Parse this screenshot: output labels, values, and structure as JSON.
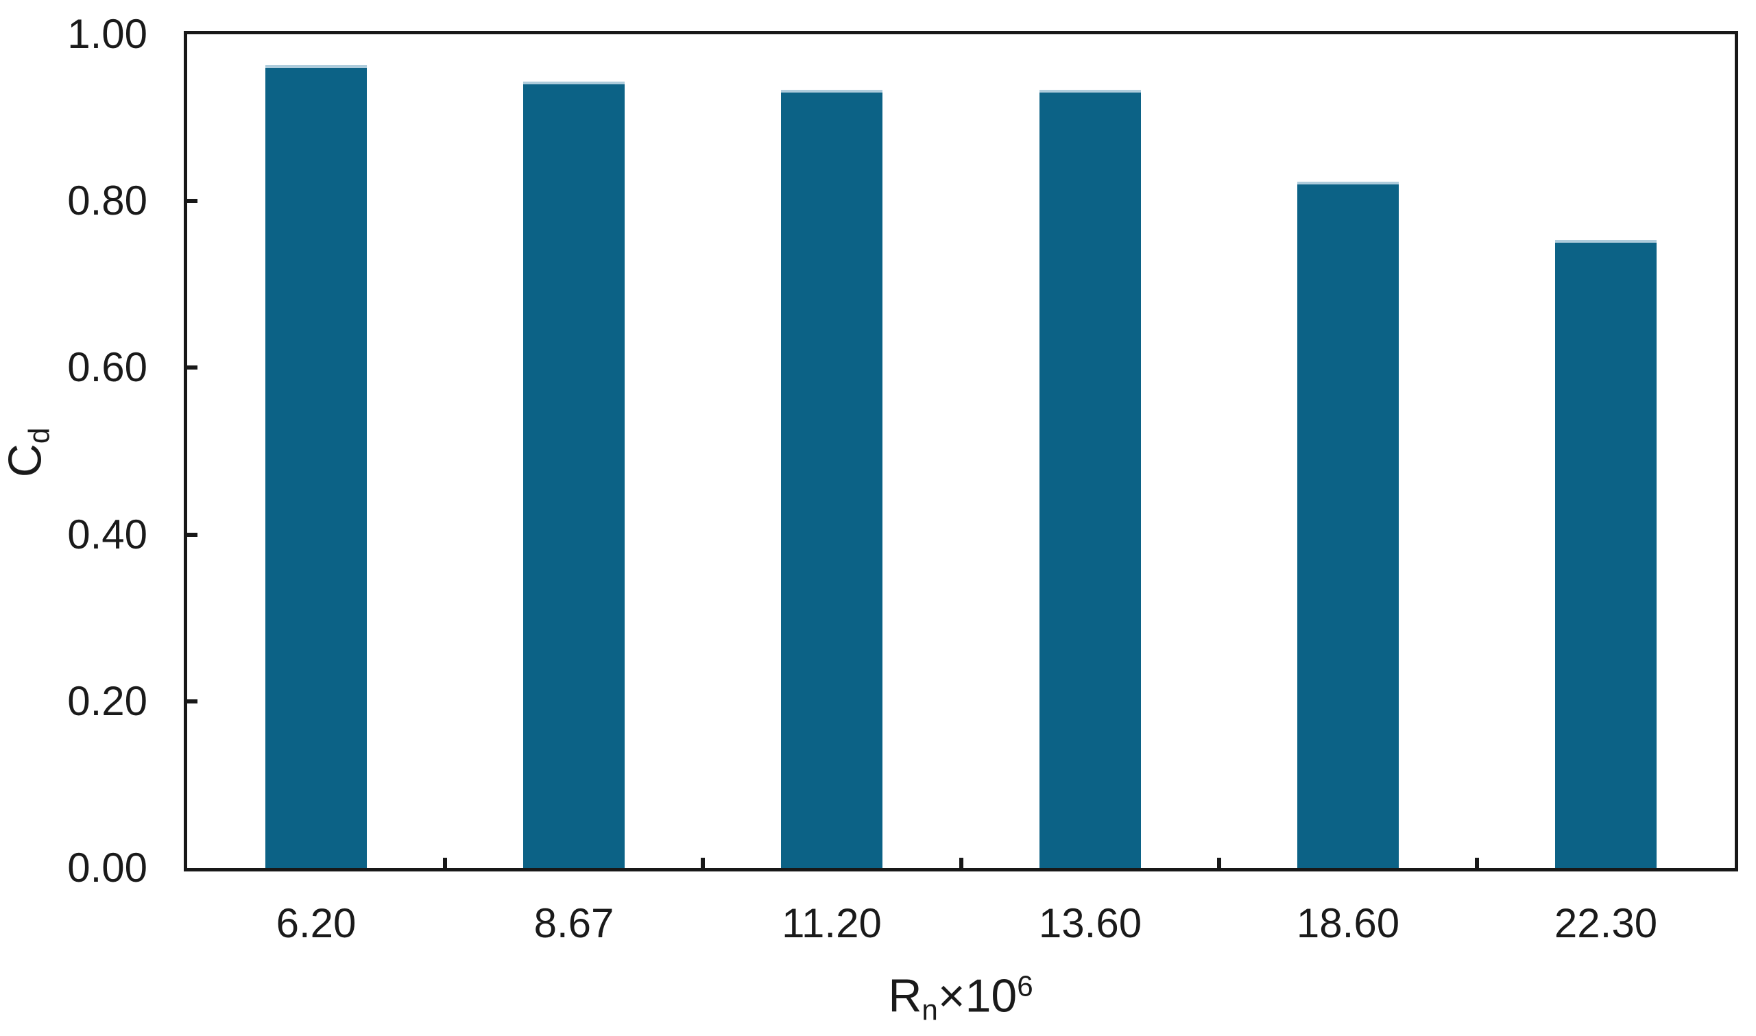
{
  "chart_data": {
    "type": "bar",
    "categories": [
      "6.20",
      "8.67",
      "11.20",
      "13.60",
      "18.60",
      "22.30"
    ],
    "values": [
      0.96,
      0.94,
      0.93,
      0.93,
      0.82,
      0.75
    ],
    "title": "",
    "xlabel": "Rn×10^6",
    "ylabel": "Cd",
    "ylim": [
      0.0,
      1.0
    ],
    "y_ticks": [
      0.0,
      0.2,
      0.4,
      0.6,
      0.8,
      1.0
    ],
    "y_tick_labels": [
      "0.00",
      "0.20",
      "0.40",
      "0.60",
      "0.80",
      "1.00"
    ],
    "grid": false,
    "legend_position": "none",
    "bar_color": "#0c6286",
    "axis_color": "#181818",
    "background_color": "#ffffff"
  },
  "axes": {
    "x_title_parts": {
      "base": "R",
      "sub": "n",
      "mid": "×10",
      "sup": "6"
    },
    "y_title_parts": {
      "base": "C",
      "sub": "d"
    }
  }
}
